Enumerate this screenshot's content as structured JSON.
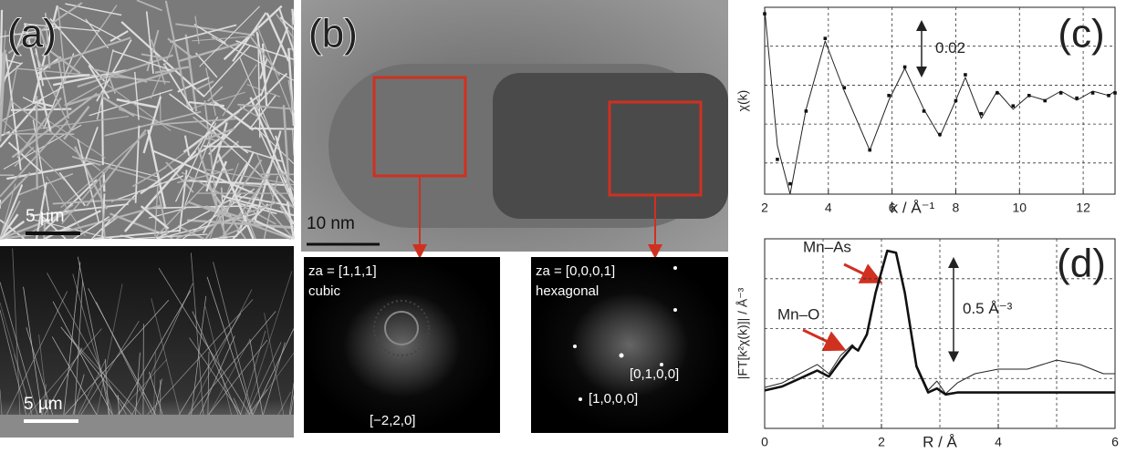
{
  "figure": {
    "a_label": "(a)",
    "a_top_scale": "5 µm",
    "a_bottom_scale": "5 µm",
    "b_label": "(b)",
    "b_scale": "10 nm",
    "fft_left": {
      "za": "za = [1,1,1]",
      "phase": "cubic",
      "spot": "[−2,2,0]"
    },
    "fft_right": {
      "za": "za = [0,0,0,1]",
      "phase": "hexagonal",
      "spot1": "[0,1,0,0]",
      "spot2": "[1,0,0,0]"
    },
    "mn_as": "Mn–As",
    "mn_o": "Mn–O"
  },
  "chart_data": [
    {
      "type": "line",
      "label": "(c)",
      "xlabel": "k / Å⁻¹",
      "ylabel": "χ(k)",
      "scale_bar": 0.02,
      "xlim": [
        2,
        13
      ],
      "xticks": [
        2,
        4,
        6,
        8,
        10,
        12
      ],
      "xgrid": [
        4,
        6,
        8,
        10,
        12
      ],
      "ylim": [
        -0.042,
        0.03
      ],
      "ygrid": [
        0.015,
        0,
        -0.015,
        -0.03
      ],
      "x": [
        2,
        2.4,
        2.8,
        3.3,
        3.9,
        4.5,
        5.3,
        5.9,
        6.4,
        7.0,
        7.5,
        8.0,
        8.3,
        8.8,
        9.3,
        9.8,
        10.3,
        10.8,
        11.3,
        11.8,
        12.3,
        12.8,
        13
      ],
      "series": [
        {
          "style": "line",
          "color": "#222",
          "values": [
            0.0293,
            -0.0234,
            -0.042,
            -0.0093,
            0.017,
            -0.0023,
            -0.0251,
            -0.0058,
            0.0065,
            -0.0093,
            -0.0198,
            -0.0058,
            0.003,
            -0.0128,
            -0.0023,
            -0.0093,
            -0.004,
            -0.0058,
            -0.0023,
            -0.0058,
            -0.0023,
            -0.004,
            -0.0023
          ]
        },
        {
          "style": "dots",
          "color": "#111",
          "values": [
            0.0275,
            -0.0286,
            -0.038,
            -0.01,
            0.018,
            -0.001,
            -0.025,
            -0.004,
            0.007,
            -0.01,
            -0.019,
            -0.006,
            0.004,
            -0.011,
            -0.003,
            -0.008,
            -0.004,
            -0.006,
            -0.003,
            -0.005,
            -0.003,
            -0.004,
            -0.003
          ]
        }
      ]
    },
    {
      "type": "line",
      "label": "(d)",
      "xlabel": "R / Å",
      "ylabel": "|FT[k²χ(k)]| / Å⁻³",
      "scale_bar": {
        "value": 0.5,
        "label": "0.5 Å⁻³"
      },
      "xlim": [
        0,
        6
      ],
      "xticks": [
        0,
        2,
        4,
        6
      ],
      "xgrid": [
        1,
        2,
        3,
        4,
        5
      ],
      "ylim": [
        0,
        0.95
      ],
      "ygrid": [
        0.25,
        0.5,
        0.75
      ],
      "x": [
        0,
        0.3,
        0.6,
        0.9,
        1.1,
        1.3,
        1.5,
        1.6,
        1.75,
        1.9,
        2.1,
        2.25,
        2.4,
        2.6,
        2.8,
        2.95,
        3.1,
        3.3,
        3.6,
        4.0,
        4.5,
        5.0,
        5.4,
        5.8,
        6
      ],
      "series": [
        {
          "style": "line",
          "color": "#222",
          "values": [
            0.205,
            0.228,
            0.274,
            0.32,
            0.274,
            0.365,
            0.42,
            0.388,
            0.479,
            0.685,
            0.89,
            0.877,
            0.685,
            0.32,
            0.192,
            0.237,
            0.174,
            0.228,
            0.274,
            0.297,
            0.297,
            0.342,
            0.32,
            0.274,
            0.274
          ]
        },
        {
          "style": "thick",
          "color": "#111",
          "values": [
            0.19,
            0.21,
            0.25,
            0.29,
            0.26,
            0.34,
            0.41,
            0.39,
            0.47,
            0.68,
            0.89,
            0.88,
            0.68,
            0.31,
            0.18,
            0.2,
            0.17,
            0.18,
            0.18,
            0.18,
            0.18,
            0.18,
            0.18,
            0.18,
            0.18
          ]
        }
      ]
    }
  ]
}
